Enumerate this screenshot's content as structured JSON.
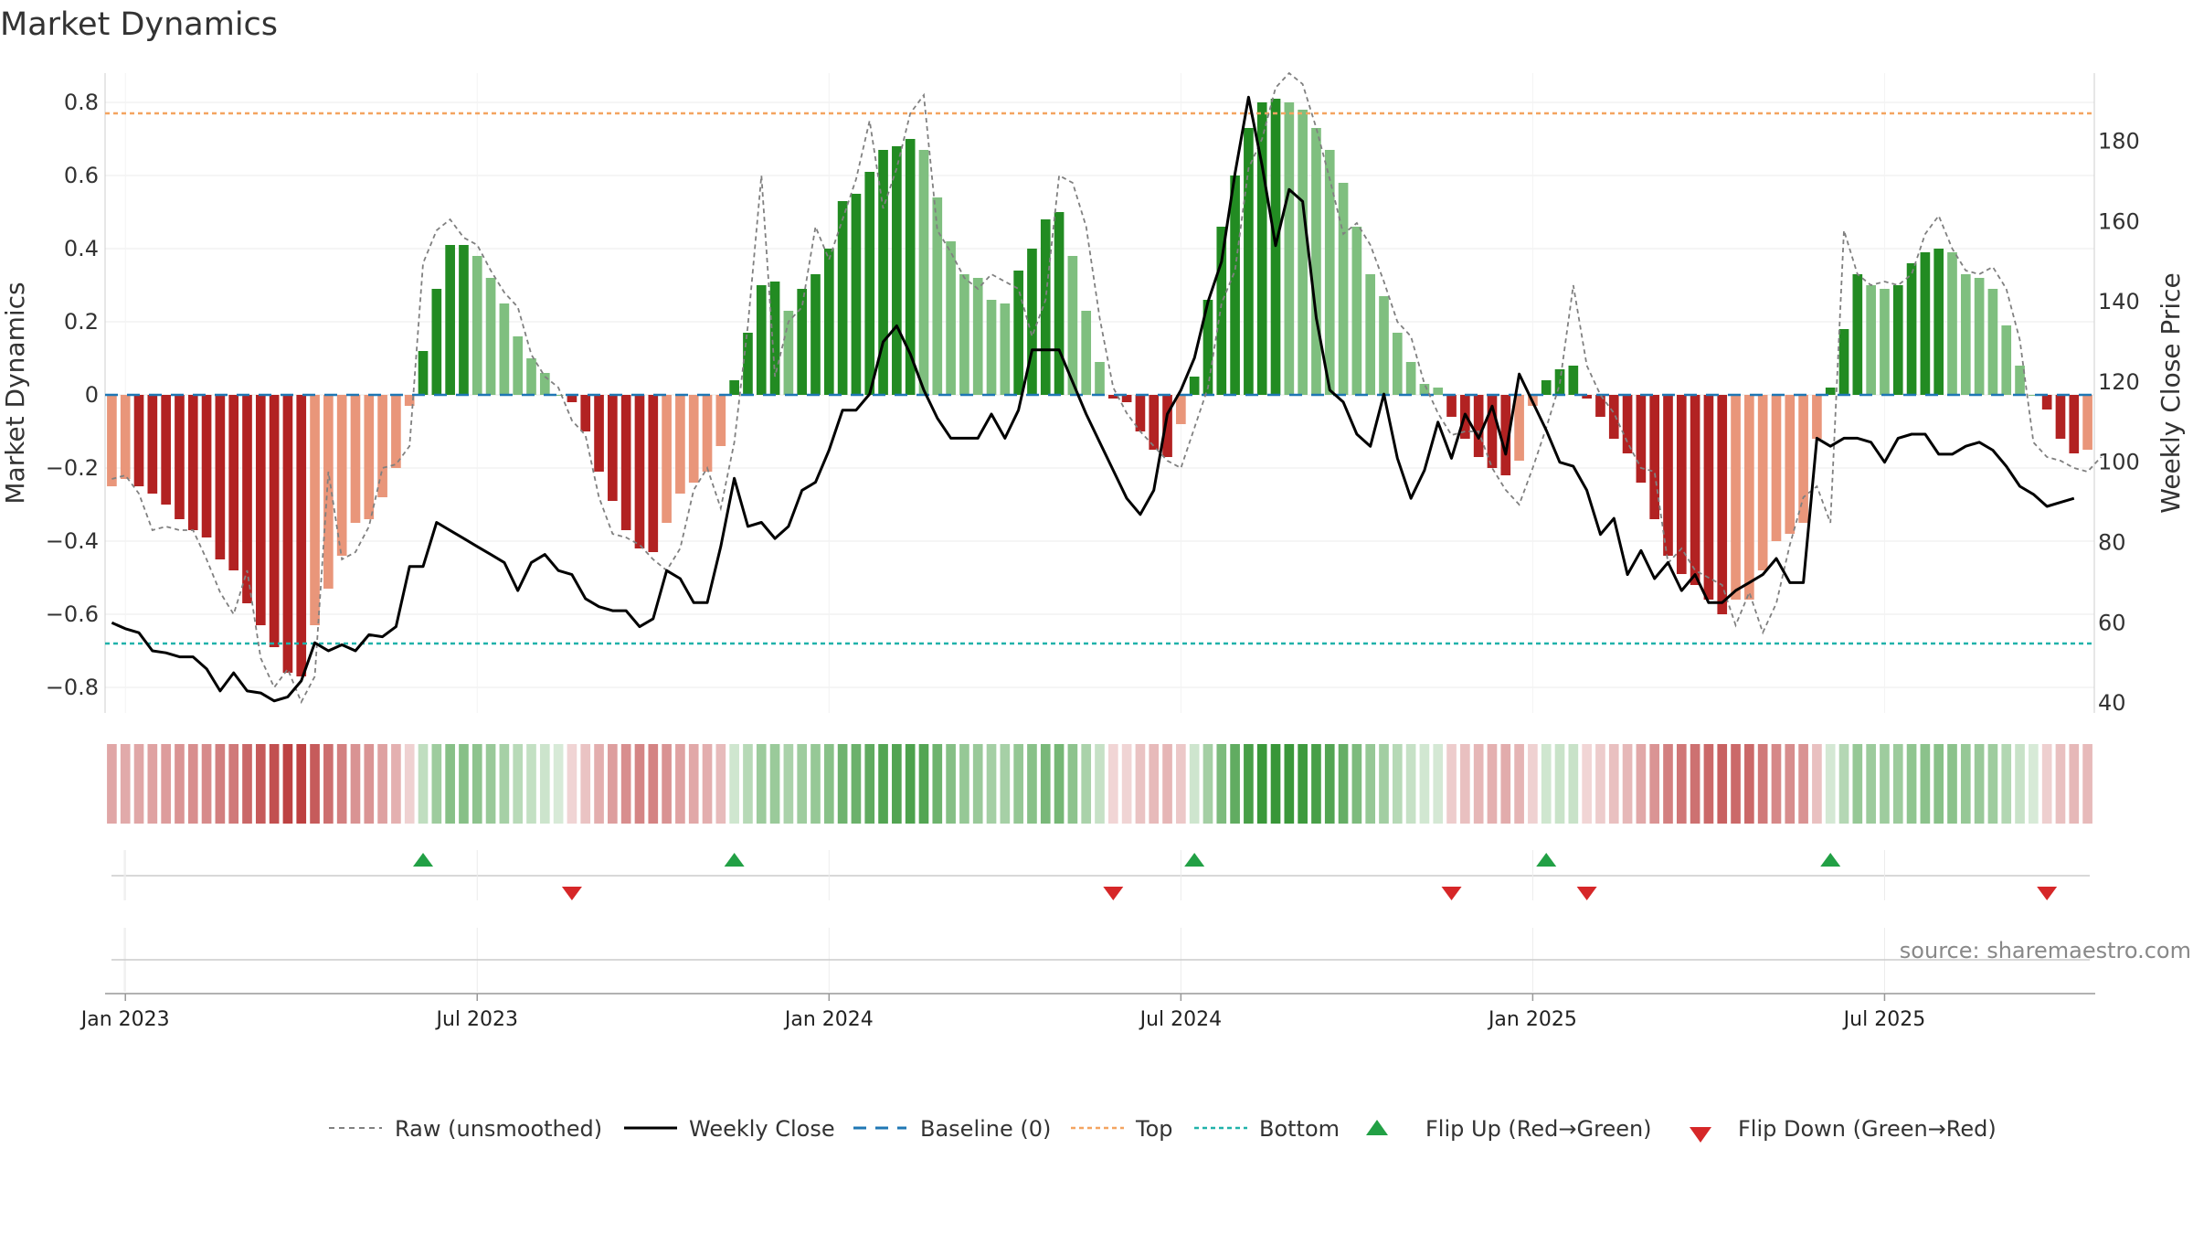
{
  "chart_data": {
    "type": "bar",
    "title": "Market Dynamics",
    "source": "source: sharemaestro.com",
    "ylabel_left": "Market Dynamics",
    "ylabel_right": "Weekly Close Price",
    "ylim_left": [
      -0.87,
      0.88
    ],
    "ylim_right": [
      37.5,
      197
    ],
    "yticks_left": [
      {
        "v": 0.8,
        "label": "0.8"
      },
      {
        "v": 0.6,
        "label": "0.6"
      },
      {
        "v": 0.4,
        "label": "0.4"
      },
      {
        "v": 0.2,
        "label": "0.2"
      },
      {
        "v": 0,
        "label": "0"
      },
      {
        "v": -0.2,
        "label": "−0.2"
      },
      {
        "v": -0.4,
        "label": "−0.4"
      },
      {
        "v": -0.6,
        "label": "−0.6"
      },
      {
        "v": -0.8,
        "label": "−0.8"
      }
    ],
    "yticks_right": [
      {
        "v": 180,
        "label": "180"
      },
      {
        "v": 160,
        "label": "160"
      },
      {
        "v": 140,
        "label": "140"
      },
      {
        "v": 120,
        "label": "120"
      },
      {
        "v": 100,
        "label": "100"
      },
      {
        "v": 80,
        "label": "80"
      },
      {
        "v": 60,
        "label": "60"
      },
      {
        "v": 40,
        "label": "40"
      }
    ],
    "x_start_week_offset": -1,
    "xticks": [
      {
        "week": 0,
        "label": "Jan 2023"
      },
      {
        "week": 26,
        "label": "Jul 2023"
      },
      {
        "week": 52,
        "label": "Jan 2024"
      },
      {
        "week": 78,
        "label": "Jul 2024"
      },
      {
        "week": 104,
        "label": "Jan 2025"
      },
      {
        "week": 130,
        "label": "Jul 2025"
      }
    ],
    "top_threshold": 0.77,
    "bottom_threshold": -0.68,
    "baseline": 0,
    "dynamics": [
      -0.25,
      -0.23,
      -0.25,
      -0.27,
      -0.3,
      -0.34,
      -0.37,
      -0.39,
      -0.45,
      -0.48,
      -0.57,
      -0.63,
      -0.69,
      -0.76,
      -0.77,
      -0.63,
      -0.53,
      -0.44,
      -0.35,
      -0.34,
      -0.28,
      -0.2,
      -0.03,
      0.12,
      0.29,
      0.41,
      0.41,
      0.38,
      0.32,
      0.25,
      0.16,
      0.1,
      0.06,
      0,
      -0.02,
      -0.1,
      -0.21,
      -0.29,
      -0.37,
      -0.42,
      -0.43,
      -0.35,
      -0.27,
      -0.24,
      -0.21,
      -0.14,
      0.04,
      0.17,
      0.3,
      0.31,
      0.23,
      0.29,
      0.33,
      0.4,
      0.53,
      0.55,
      0.61,
      0.67,
      0.68,
      0.7,
      0.67,
      0.54,
      0.42,
      0.33,
      0.32,
      0.26,
      0.25,
      0.34,
      0.4,
      0.48,
      0.5,
      0.38,
      0.23,
      0.09,
      -0.01,
      -0.02,
      -0.1,
      -0.15,
      -0.17,
      -0.08,
      0.05,
      0.26,
      0.46,
      0.6,
      0.73,
      0.8,
      0.81,
      0.8,
      0.78,
      0.73,
      0.67,
      0.58,
      0.46,
      0.33,
      0.27,
      0.17,
      0.09,
      0.03,
      0.02,
      -0.06,
      -0.12,
      -0.17,
      -0.2,
      -0.22,
      -0.18,
      -0.03,
      0.04,
      0.07,
      0.08,
      -0.01,
      -0.06,
      -0.12,
      -0.16,
      -0.24,
      -0.34,
      -0.44,
      -0.49,
      -0.52,
      -0.56,
      -0.6,
      -0.56,
      -0.56,
      -0.48,
      -0.4,
      -0.38,
      -0.35,
      -0.12,
      0.02,
      0.18,
      0.33,
      0.3,
      0.29,
      0.3,
      0.36,
      0.39,
      0.4,
      0.39,
      0.33,
      0.32,
      0.29,
      0.19,
      0.08,
      0,
      -0.04,
      -0.12,
      -0.16,
      -0.15
    ],
    "raw": [
      -0.23,
      -0.22,
      -0.27,
      -0.37,
      -0.36,
      -0.37,
      -0.37,
      -0.45,
      -0.54,
      -0.6,
      -0.48,
      -0.72,
      -0.8,
      -0.75,
      -0.84,
      -0.77,
      -0.21,
      -0.45,
      -0.43,
      -0.36,
      -0.2,
      -0.19,
      -0.14,
      0.36,
      0.45,
      0.48,
      0.43,
      0.41,
      0.34,
      0.28,
      0.24,
      0.11,
      0.05,
      0.02,
      -0.07,
      -0.11,
      -0.28,
      -0.38,
      -0.39,
      -0.41,
      -0.45,
      -0.48,
      -0.42,
      -0.26,
      -0.2,
      -0.31,
      -0.13,
      0.19,
      0.6,
      0.05,
      0.2,
      0.24,
      0.46,
      0.37,
      0.48,
      0.59,
      0.75,
      0.51,
      0.62,
      0.77,
      0.82,
      0.45,
      0.39,
      0.32,
      0.29,
      0.33,
      0.31,
      0.29,
      0.16,
      0.26,
      0.6,
      0.58,
      0.46,
      0.21,
      0.02,
      -0.05,
      -0.1,
      -0.14,
      -0.18,
      -0.2,
      -0.09,
      0.02,
      0.25,
      0.34,
      0.62,
      0.7,
      0.84,
      0.88,
      0.85,
      0.73,
      0.59,
      0.44,
      0.47,
      0.41,
      0.31,
      0.2,
      0.16,
      0.03,
      -0.05,
      -0.11,
      -0.1,
      -0.1,
      -0.2,
      -0.26,
      -0.3,
      -0.2,
      -0.09,
      0.03,
      0.3,
      0.08,
      0,
      -0.05,
      -0.13,
      -0.2,
      -0.21,
      -0.46,
      -0.42,
      -0.48,
      -0.5,
      -0.52,
      -0.63,
      -0.54,
      -0.65,
      -0.57,
      -0.41,
      -0.28,
      -0.25,
      -0.35,
      0.45,
      0.33,
      0.3,
      0.31,
      0.3,
      0.33,
      0.44,
      0.49,
      0.4,
      0.34,
      0.33,
      0.35,
      0.29,
      0.15,
      -0.13,
      -0.17,
      -0.18,
      -0.2,
      -0.21,
      -0.17
    ],
    "price": [
      60,
      58.5,
      57.5,
      53,
      52.5,
      51.5,
      51.5,
      48.5,
      43,
      47.5,
      43,
      42.5,
      40.5,
      41.5,
      45.5,
      55,
      53,
      54.5,
      53,
      57,
      56.5,
      59,
      74,
      74,
      85,
      83,
      81,
      79,
      77,
      75,
      68,
      75,
      77,
      73,
      72,
      66,
      64,
      63,
      63,
      59,
      61,
      73,
      71,
      65,
      65,
      79,
      96,
      84,
      85,
      81,
      84,
      93,
      95,
      103,
      113,
      113,
      117,
      130,
      134,
      127,
      118,
      111,
      106,
      106,
      106,
      112,
      106,
      113,
      128,
      128,
      128,
      120,
      112,
      105,
      98,
      91,
      87,
      93,
      112,
      118,
      126,
      140,
      150,
      172,
      191,
      174,
      154,
      168,
      165,
      136,
      118,
      115,
      107,
      104,
      117,
      101,
      91,
      98,
      110,
      101,
      112,
      106,
      114,
      102,
      122,
      115,
      108,
      100,
      99,
      93,
      82,
      86,
      72,
      78,
      71,
      75,
      68,
      72,
      65,
      65,
      68,
      70,
      72,
      76,
      70,
      70,
      106,
      104,
      106,
      106,
      105,
      100,
      106,
      107,
      107,
      102,
      102,
      104,
      105,
      103,
      99,
      94,
      92,
      89,
      90,
      91
    ]
  },
  "legend": {
    "raw": "Raw (unsmoothed)",
    "close": "Weekly Close",
    "baseline": "Baseline (0)",
    "top": "Top",
    "bottom": "Bottom",
    "flip_up": "Flip Up (Red→Green)",
    "flip_down": "Flip Down (Green→Red)"
  },
  "colors": {
    "green_strong": "#228B22",
    "green_light": "#7FBF7F",
    "red_strong": "#B22222",
    "red_light": "#E9967A",
    "top_line": "#F4A460",
    "bottom_line": "#20B2AA",
    "baseline": "#1F77B4",
    "raw_line": "#808080",
    "close_line": "#000000",
    "marker_up": "#22A045",
    "marker_down": "#D62728"
  }
}
